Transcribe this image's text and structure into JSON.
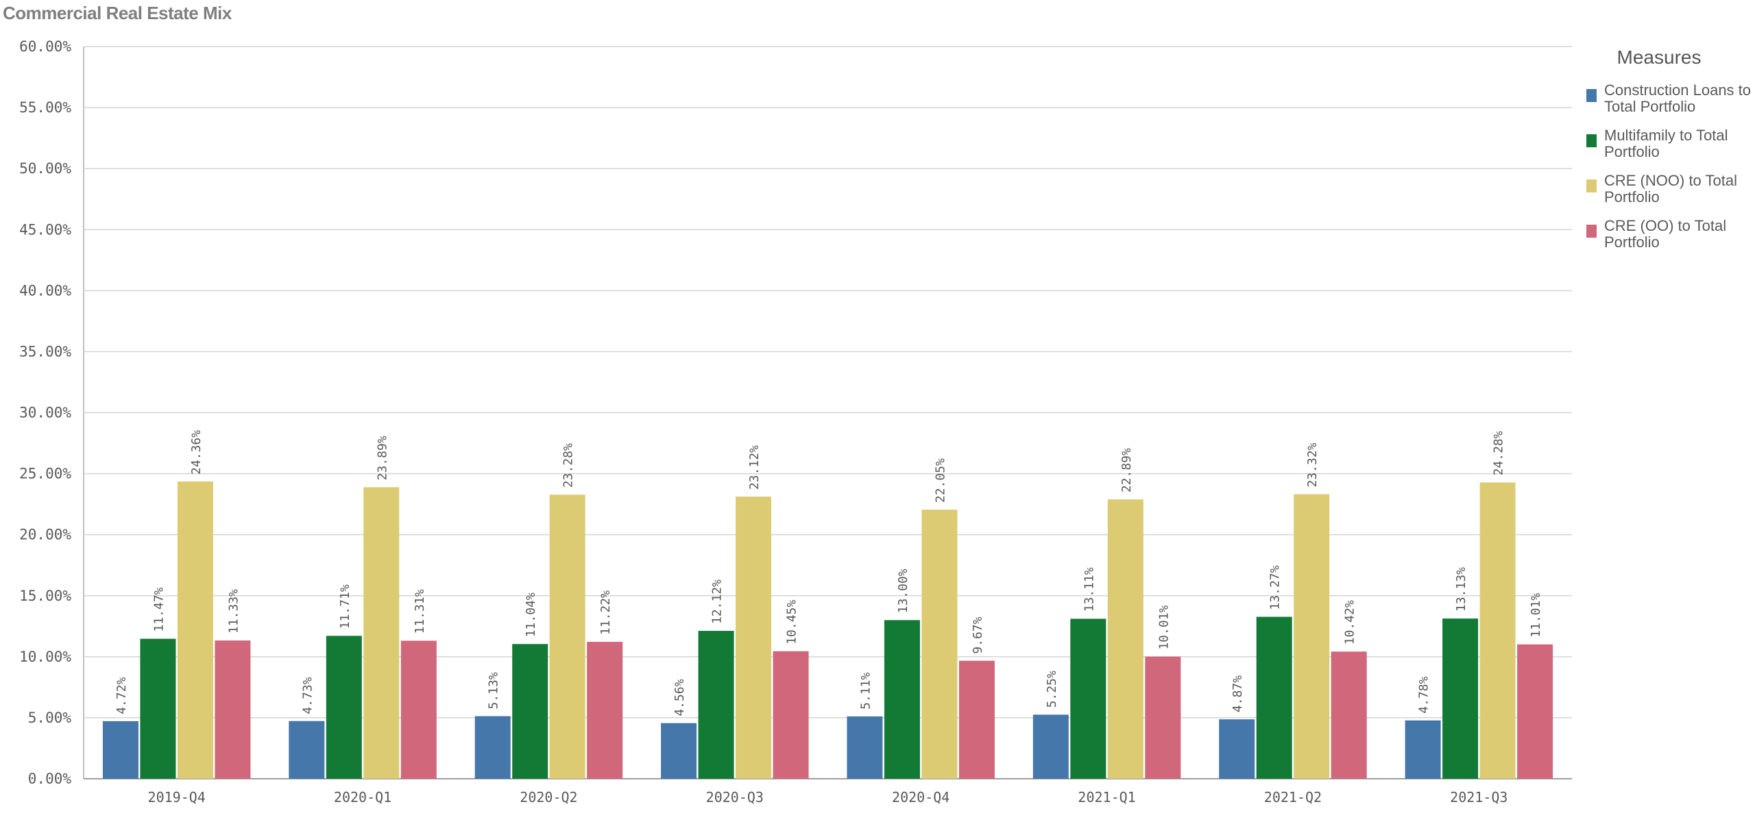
{
  "title": "Commercial Real Estate Mix",
  "chart_data": {
    "type": "bar",
    "title": "Commercial Real Estate Mix",
    "categories": [
      "2019-Q4",
      "2020-Q1",
      "2020-Q2",
      "2020-Q3",
      "2020-Q4",
      "2021-Q1",
      "2021-Q2",
      "2021-Q3"
    ],
    "series": [
      {
        "name": "Construction Loans to Total Portfolio",
        "color": "#4677aa",
        "values": [
          4.72,
          4.73,
          5.13,
          4.56,
          5.11,
          5.25,
          4.87,
          4.78
        ],
        "labels": [
          "4.72%",
          "4.73%",
          "5.13%",
          "4.56%",
          "5.11%",
          "5.25%",
          "4.87%",
          "4.78%"
        ]
      },
      {
        "name": "Multifamily to Total Portfolio",
        "color": "#137a36",
        "values": [
          11.47,
          11.71,
          11.04,
          12.12,
          13.0,
          13.11,
          13.27,
          13.13
        ],
        "labels": [
          "11.47%",
          "11.71%",
          "11.04%",
          "12.12%",
          "13.00%",
          "13.11%",
          "13.27%",
          "13.13%"
        ]
      },
      {
        "name": "CRE (NOO) to Total Portfolio",
        "color": "#dccb73",
        "values": [
          24.36,
          23.89,
          23.28,
          23.12,
          22.05,
          22.89,
          23.32,
          24.28
        ],
        "labels": [
          "24.36%",
          "23.89%",
          "23.28%",
          "23.12%",
          "22.05%",
          "22.89%",
          "23.32%",
          "24.28%"
        ]
      },
      {
        "name": "CRE (OO) to Total Portfolio",
        "color": "#d0677a",
        "values": [
          11.33,
          11.31,
          11.22,
          10.45,
          9.67,
          10.01,
          10.42,
          11.01
        ],
        "labels": [
          "11.33%",
          "11.31%",
          "11.22%",
          "10.45%",
          "9.67%",
          "10.01%",
          "10.42%",
          "11.01%"
        ]
      }
    ],
    "ylim": [
      0,
      60
    ],
    "yticks": [
      0,
      5,
      10,
      15,
      20,
      25,
      30,
      35,
      40,
      45,
      50,
      55,
      60
    ],
    "ytick_labels": [
      "0.00%",
      "5.00%",
      "10.00%",
      "15.00%",
      "20.00%",
      "25.00%",
      "30.00%",
      "35.00%",
      "40.00%",
      "45.00%",
      "50.00%",
      "55.00%",
      "60.00%"
    ],
    "grid": true,
    "legend": {
      "title": "Measures",
      "position": "right"
    }
  }
}
